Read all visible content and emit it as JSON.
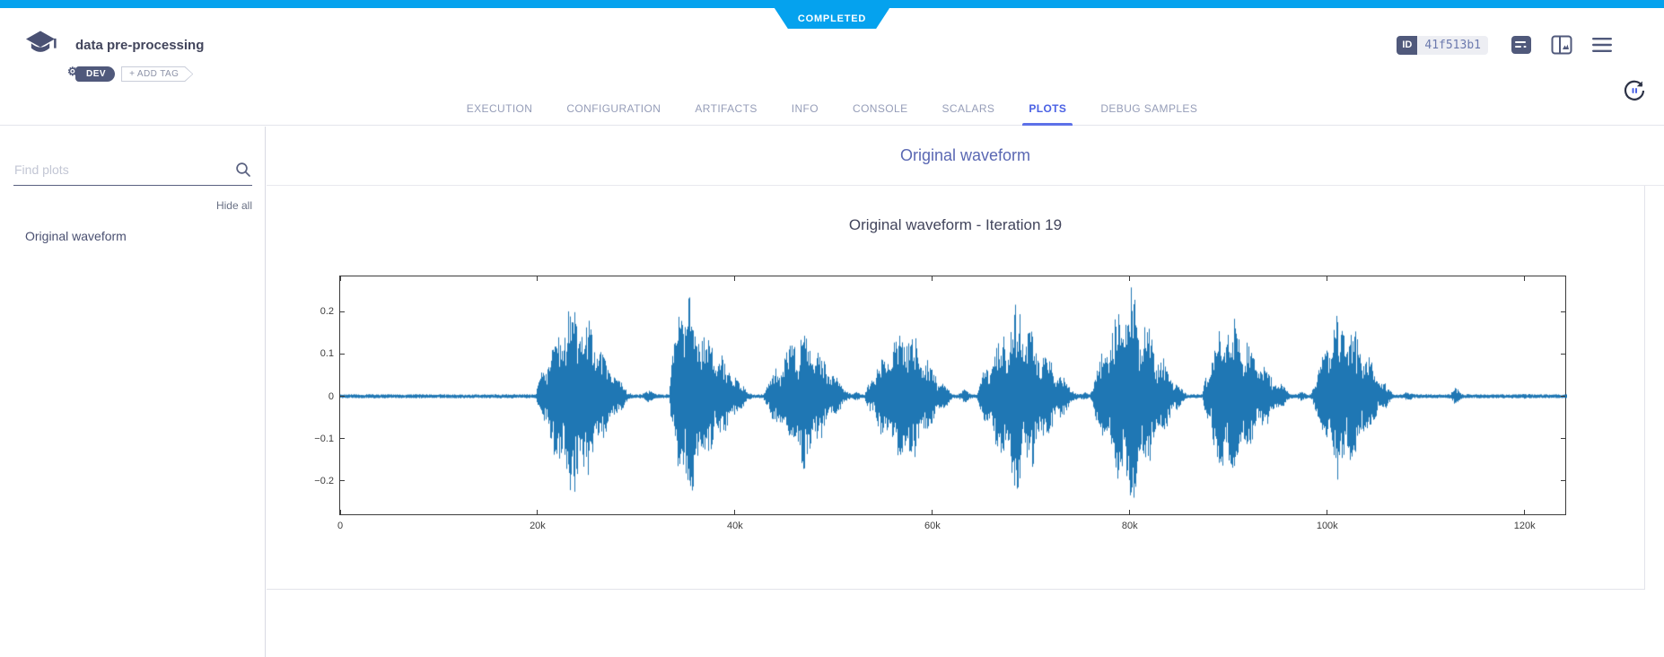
{
  "status_banner": {
    "label": "COMPLETED",
    "color": "#05a2ee"
  },
  "header": {
    "title": "data pre-processing",
    "tags": {
      "dev_label": "DEV",
      "add_tag_label": "+ ADD TAG"
    },
    "id_chip": {
      "label": "ID",
      "value": "41f513b1"
    }
  },
  "tabs": {
    "items": [
      "EXECUTION",
      "CONFIGURATION",
      "ARTIFACTS",
      "INFO",
      "CONSOLE",
      "SCALARS",
      "PLOTS",
      "DEBUG SAMPLES"
    ],
    "active": "PLOTS"
  },
  "sidebar": {
    "search_placeholder": "Find plots",
    "hide_all_label": "Hide all",
    "items": [
      "Original waveform"
    ]
  },
  "main": {
    "group_title": "Original waveform"
  },
  "chart_data": {
    "type": "line",
    "title": "Original waveform - Iteration 19",
    "xlabel": "",
    "ylabel": "",
    "series_color": "#1f77b4",
    "frame_color": "#3c3c3c",
    "grid": false,
    "legend": false,
    "xlim": [
      0,
      124300
    ],
    "ylim": [
      -0.284,
      0.284
    ],
    "x_ticks": [
      {
        "label": "0",
        "value": 0
      },
      {
        "label": "20k",
        "value": 20000
      },
      {
        "label": "40k",
        "value": 40000
      },
      {
        "label": "60k",
        "value": 60000
      },
      {
        "label": "80k",
        "value": 80000
      },
      {
        "label": "100k",
        "value": 100000
      },
      {
        "label": "120k",
        "value": 120000
      }
    ],
    "y_ticks": [
      {
        "label": "0.2",
        "value": 0.2
      },
      {
        "label": "0.1",
        "value": 0.1
      },
      {
        "label": "0",
        "value": 0
      },
      {
        "label": "−0.1",
        "value": -0.1
      },
      {
        "label": "−0.2",
        "value": -0.2
      }
    ],
    "noise_floor": 0.0045,
    "bursts": [
      {
        "start": 19800,
        "peak_x": 23900,
        "end": 29900,
        "amplitude": 0.235
      },
      {
        "start": 29800,
        "peak_x": 31200,
        "end": 33200,
        "amplitude": 0.013
      },
      {
        "start": 33300,
        "peak_x": 34700,
        "end": 42200,
        "amplitude": 0.252
      },
      {
        "start": 42800,
        "peak_x": 46900,
        "end": 52200,
        "amplitude": 0.165
      },
      {
        "start": 51500,
        "peak_x": 52300,
        "end": 53300,
        "amplitude": 0.012
      },
      {
        "start": 53100,
        "peak_x": 57400,
        "end": 62600,
        "amplitude": 0.17
      },
      {
        "start": 62200,
        "peak_x": 63300,
        "end": 64600,
        "amplitude": 0.016
      },
      {
        "start": 64500,
        "peak_x": 68800,
        "end": 75200,
        "amplitude": 0.215
      },
      {
        "start": 74800,
        "peak_x": 75400,
        "end": 76200,
        "amplitude": 0.015
      },
      {
        "start": 76000,
        "peak_x": 80100,
        "end": 86200,
        "amplitude": 0.245
      },
      {
        "start": 87400,
        "peak_x": 89700,
        "end": 97000,
        "amplitude": 0.205
      },
      {
        "start": 96600,
        "peak_x": 97500,
        "end": 98600,
        "amplitude": 0.012
      },
      {
        "start": 98400,
        "peak_x": 101600,
        "end": 107200,
        "amplitude": 0.208
      },
      {
        "start": 107000,
        "peak_x": 108000,
        "end": 110500,
        "amplitude": 0.01
      },
      {
        "start": 112400,
        "peak_x": 113100,
        "end": 114600,
        "amplitude": 0.02
      },
      {
        "start": 118000,
        "peak_x": 120000,
        "end": 123000,
        "amplitude": 0.007
      }
    ]
  }
}
